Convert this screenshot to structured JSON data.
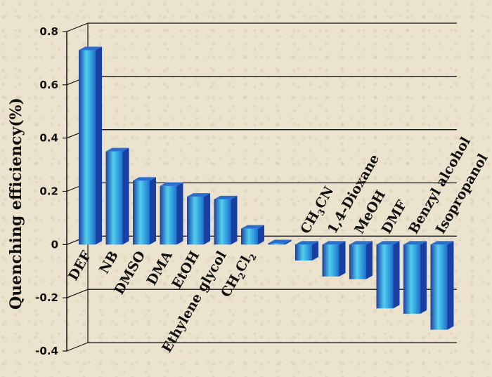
{
  "chart_data": {
    "type": "bar",
    "title": "",
    "xlabel": "",
    "ylabel": "Quenching efficiency(%)",
    "ylim": [
      -0.4,
      0.8
    ],
    "yticks": [
      "0.8",
      "0.6",
      "0.4",
      "0.2",
      "0",
      "-0.2",
      "-0.4"
    ],
    "grid": true,
    "categories": [
      "DEF",
      "NB",
      "DMSO",
      "DMA",
      "EtOH",
      "Ethylene glycol",
      "CH2Cl2",
      "",
      "CH3CN",
      "1,4-Dioxane",
      "MeOH",
      "DMF",
      "Benzyl alcohol",
      "Isopropanol"
    ],
    "values": [
      0.73,
      0.35,
      0.24,
      0.22,
      0.18,
      0.17,
      0.06,
      0.005,
      -0.06,
      -0.12,
      -0.13,
      -0.24,
      -0.26,
      -0.32
    ],
    "colors": {
      "bar_light": "#4fd0ee",
      "bar_mid": "#1f9ad8",
      "bar_dark": "#1a3fa0",
      "bar_top": "#2a6fd0",
      "grid": "#111111"
    }
  }
}
